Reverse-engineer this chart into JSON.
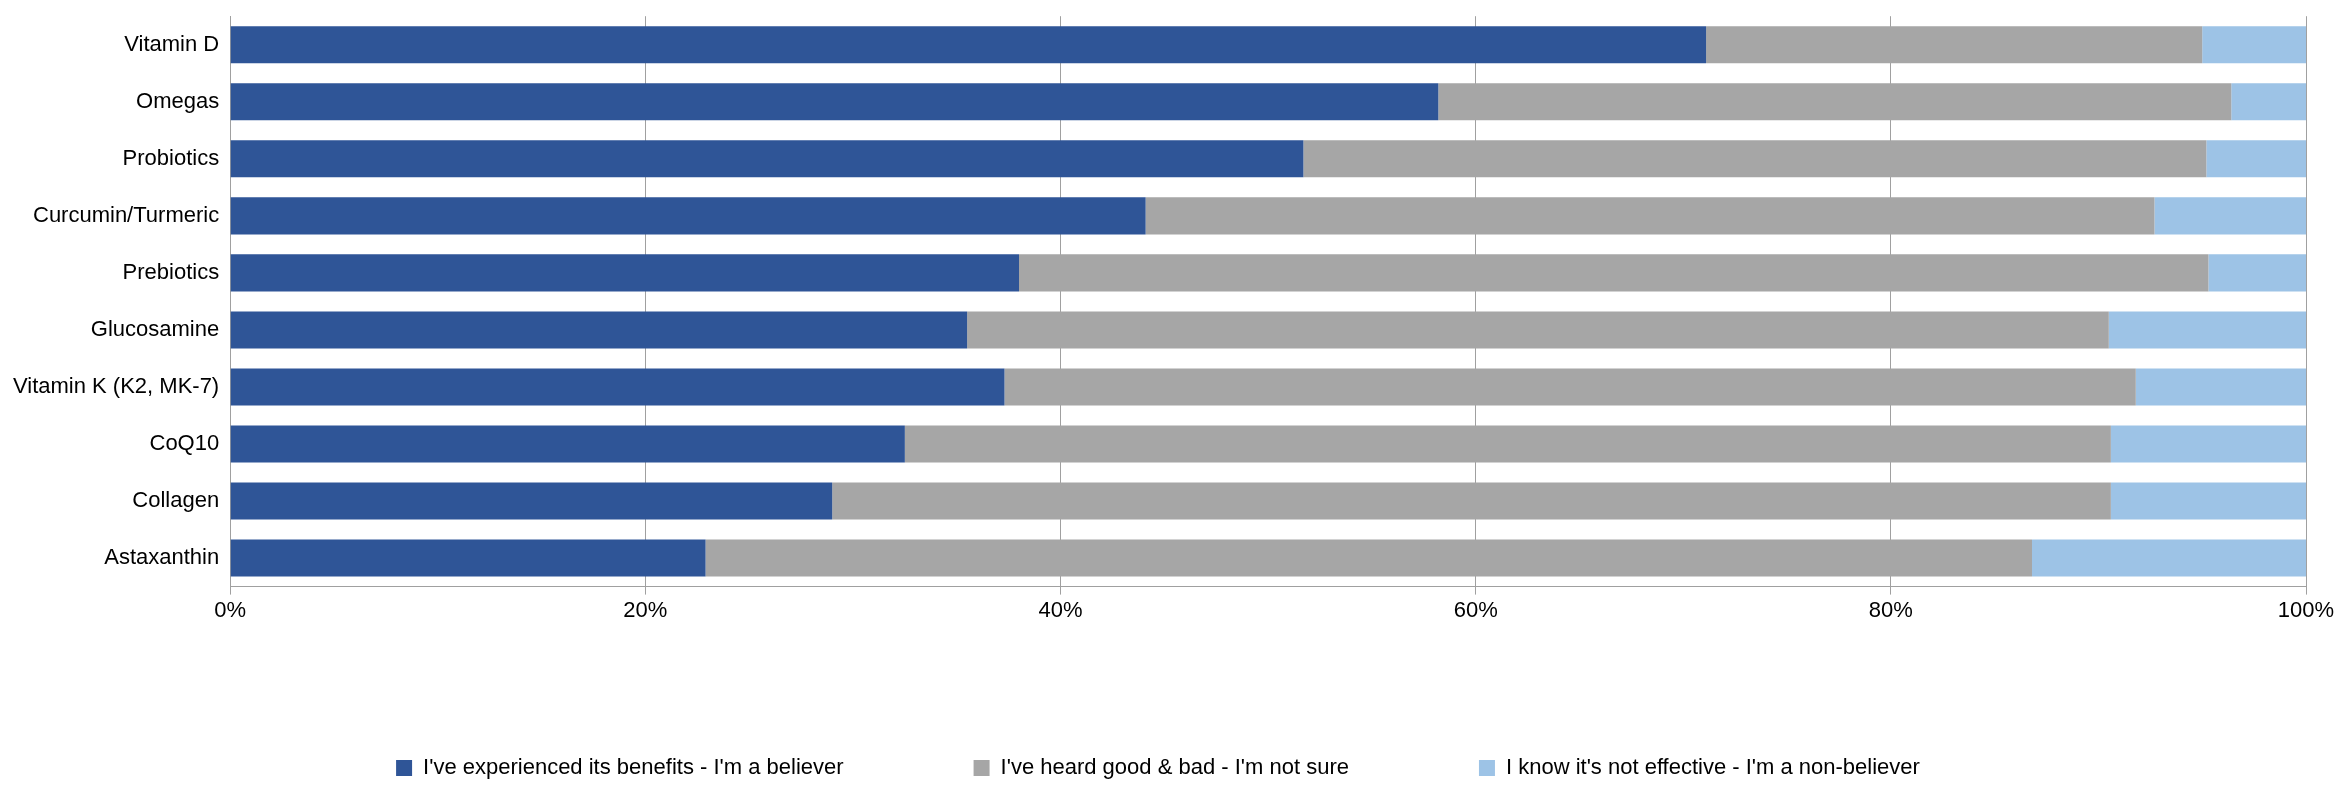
{
  "chart_data": {
    "type": "bar",
    "orientation": "horizontal",
    "stacked": true,
    "categories": [
      "Vitamin D",
      "Omegas",
      "Probiotics",
      "Curcumin/Turmeric",
      "Prebiotics",
      "Glucosamine",
      "Vitamin K (K2, MK-7)",
      "CoQ10",
      "Collagen",
      "Astaxanthin"
    ],
    "series": [
      {
        "name": "I've experienced its benefits - I'm a believer",
        "color": "#2f5597",
        "values": [
          71.1,
          58.2,
          51.7,
          44.1,
          38.0,
          35.5,
          37.3,
          32.5,
          29.0,
          22.9
        ]
      },
      {
        "name": "I've heard good & bad - I'm not sure",
        "color": "#a6a6a6",
        "values": [
          23.9,
          38.2,
          43.5,
          48.6,
          57.3,
          55.0,
          54.5,
          58.1,
          61.6,
          63.9
        ]
      },
      {
        "name": "I know it's not effective - I'm a non-believer",
        "color": "#9dc3e6",
        "values": [
          5.0,
          3.6,
          4.8,
          7.3,
          4.7,
          9.5,
          8.2,
          9.4,
          9.4,
          13.2
        ]
      }
    ],
    "xlim": [
      0,
      100
    ],
    "xticks": [
      {
        "value": 0,
        "label": "0%"
      },
      {
        "value": 20,
        "label": "20%"
      },
      {
        "value": 40,
        "label": "40%"
      },
      {
        "value": 60,
        "label": "60%"
      },
      {
        "value": 80,
        "label": "80%"
      },
      {
        "value": 100,
        "label": "100%"
      }
    ],
    "grid": "x",
    "legend": "bottom"
  }
}
